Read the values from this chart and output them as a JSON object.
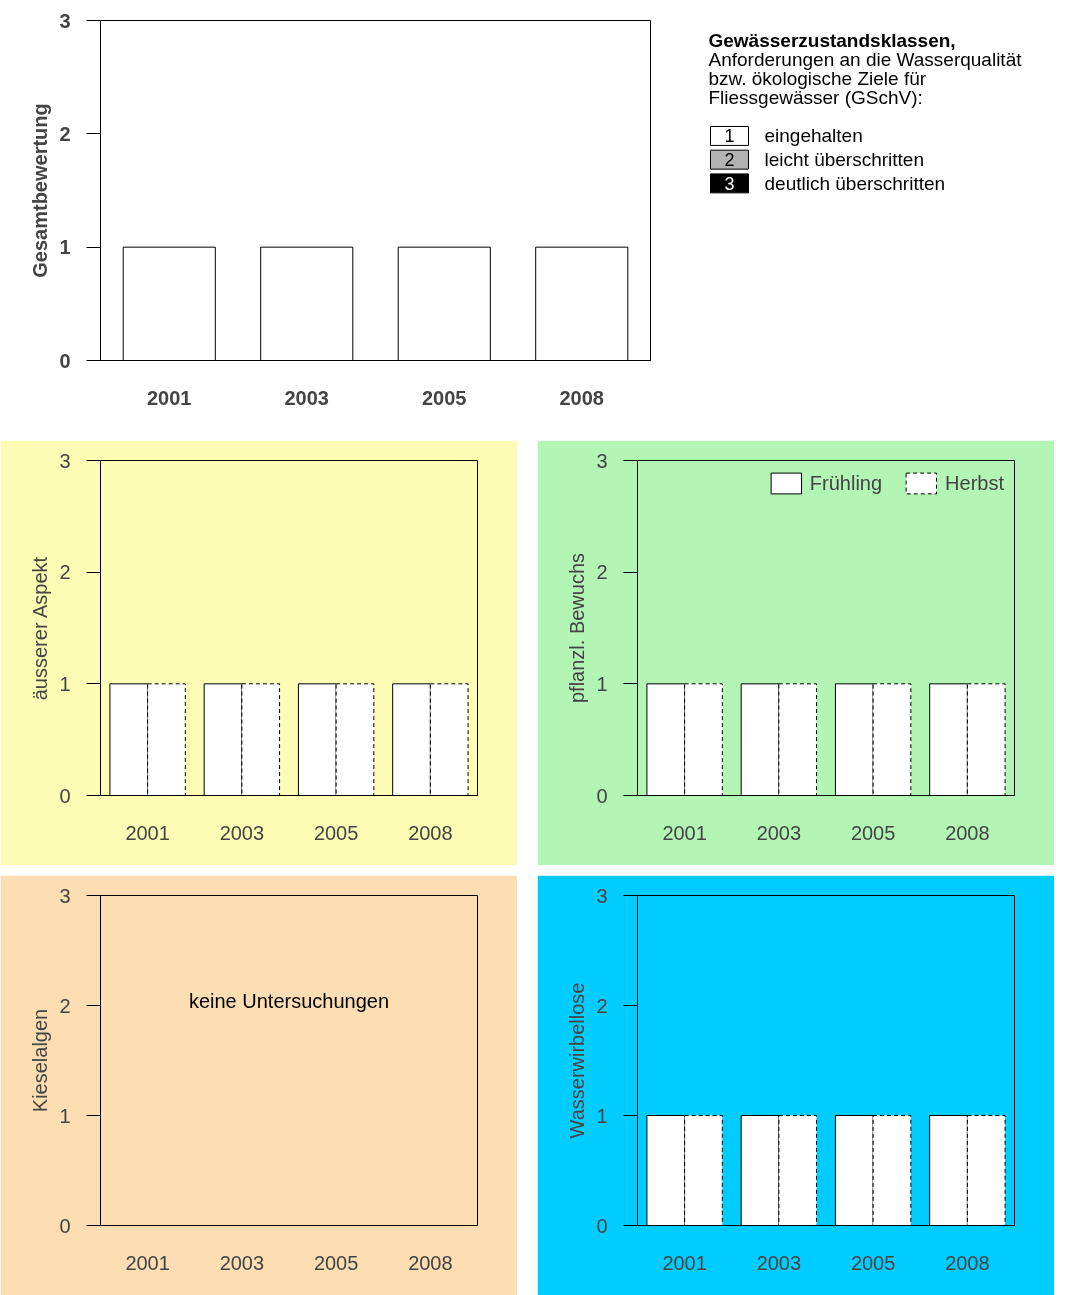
{
  "chart_data": [
    {
      "type": "bar",
      "categories": [
        "2001",
        "2003",
        "2005",
        "2008"
      ],
      "ylabel": "Gesamtbewertung",
      "ylim": [
        0,
        3
      ],
      "yticks": [
        0,
        1,
        2,
        3
      ],
      "series": [
        {
          "color": "#ffffff",
          "values": [
            1,
            1,
            1,
            1
          ]
        }
      ]
    },
    {
      "type": "other",
      "title": "Gewässerzustandsklassen,",
      "subtitle": "Anforderungen an die Wasserqualität bzw. ökologische Ziele für Fliessgewässer (GSchV):",
      "categories": [
        "eingehalten",
        "leicht überschritten",
        "deutlich überschritten"
      ],
      "values": [
        1,
        2,
        3
      ],
      "data_labels": true,
      "colors": [
        "#ffffff",
        "#b3b3b3",
        "#000000"
      ]
    },
    {
      "type": "bar",
      "categories": [
        "2001",
        "2003",
        "2005",
        "2008"
      ],
      "ylabel": "äusserer Aspekt",
      "ylim": [
        0,
        3
      ],
      "yticks": [
        0,
        1,
        2,
        3
      ],
      "series": [
        {
          "color": "#ffffff",
          "values": [
            1,
            1,
            1,
            1
          ]
        },
        {
          "color": "#ffffff",
          "values": [
            1,
            1,
            1,
            1
          ],
          "line_style": "dashed"
        }
      ]
    },
    {
      "type": "bar",
      "categories": [
        "2001",
        "2003",
        "2005",
        "2008"
      ],
      "ylabel": "pflanzl. Bewuchs",
      "ylim": [
        0,
        3
      ],
      "yticks": [
        0,
        1,
        2,
        3
      ],
      "legend": "top right",
      "series": [
        {
          "name": "Frühling",
          "color": "#ffffff",
          "values": [
            1,
            1,
            1,
            1
          ]
        },
        {
          "name": "Herbst",
          "color": "#ffffff",
          "values": [
            1,
            1,
            1,
            1
          ],
          "line_style": "dashed"
        }
      ]
    },
    {
      "type": "bar",
      "categories": [
        "2001",
        "2003",
        "2005",
        "2008"
      ],
      "ylabel": "Kieselalgen",
      "ylim": [
        0,
        3
      ],
      "yticks": [
        0,
        1,
        2,
        3
      ],
      "annotations": [
        "keine Untersuchungen"
      ],
      "series": [
        {
          "color": "#ffffff",
          "values": [
            null,
            null,
            null,
            null
          ]
        },
        {
          "color": "#ffffff",
          "values": [
            null,
            null,
            null,
            null
          ],
          "line_style": "dashed"
        }
      ]
    },
    {
      "type": "bar",
      "categories": [
        "2001",
        "2003",
        "2005",
        "2008"
      ],
      "ylabel": "Wasserwirbellose",
      "ylim": [
        0,
        3
      ],
      "yticks": [
        0,
        1,
        2,
        3
      ],
      "series": [
        {
          "color": "#ffffff",
          "values": [
            1,
            1,
            1,
            1
          ]
        },
        {
          "color": "#ffffff",
          "values": [
            1,
            1,
            1,
            1
          ],
          "line_style": "dashed"
        }
      ]
    }
  ]
}
